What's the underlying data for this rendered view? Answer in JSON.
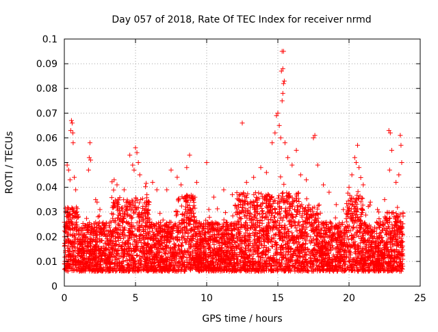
{
  "chart_data": {
    "type": "scatter",
    "title": "Day 057 of 2018, Rate Of TEC Index for receiver nrmd",
    "xlabel": "GPS time / hours",
    "ylabel": "ROTI / TECUs",
    "xlim": [
      0,
      25
    ],
    "ylim": [
      0,
      0.1
    ],
    "xticks": [
      0,
      5,
      10,
      15,
      20,
      25
    ],
    "xtick_labels": [
      "0",
      "5",
      "10",
      "15",
      "20",
      "25"
    ],
    "yticks": [
      0,
      0.01,
      0.02,
      0.03,
      0.04,
      0.05,
      0.06,
      0.07,
      0.08,
      0.09,
      0.1
    ],
    "ytick_labels": [
      "0",
      "0.01",
      "0.02",
      "0.03",
      "0.04",
      "0.05",
      "0.06",
      "0.07",
      "0.08",
      "0.09",
      "0.1"
    ],
    "grid": true,
    "marker": "+",
    "color": "#ff0000",
    "series": [
      {
        "name": "ROTI",
        "points": [
          [
            0.5,
            0.067
          ],
          [
            0.55,
            0.066
          ],
          [
            0.6,
            0.062
          ],
          [
            0.62,
            0.058
          ],
          [
            0.45,
            0.063
          ],
          [
            0.2,
            0.049
          ],
          [
            0.3,
            0.047
          ],
          [
            0.4,
            0.043
          ],
          [
            0.7,
            0.044
          ],
          [
            0.8,
            0.039
          ],
          [
            1.8,
            0.058
          ],
          [
            1.75,
            0.052
          ],
          [
            1.85,
            0.051
          ],
          [
            1.7,
            0.047
          ],
          [
            2.2,
            0.035
          ],
          [
            2.3,
            0.034
          ],
          [
            2.5,
            0.031
          ],
          [
            3.5,
            0.043
          ],
          [
            3.7,
            0.041
          ],
          [
            4.2,
            0.039
          ],
          [
            4.6,
            0.053
          ],
          [
            4.8,
            0.049
          ],
          [
            5.0,
            0.056
          ],
          [
            5.1,
            0.054
          ],
          [
            5.2,
            0.05
          ],
          [
            5.3,
            0.045
          ],
          [
            4.9,
            0.047
          ],
          [
            5.8,
            0.037
          ],
          [
            6.2,
            0.042
          ],
          [
            6.5,
            0.039
          ],
          [
            7.2,
            0.039
          ],
          [
            7.5,
            0.047
          ],
          [
            8.2,
            0.041
          ],
          [
            8.6,
            0.048
          ],
          [
            8.8,
            0.053
          ],
          [
            9.3,
            0.042
          ],
          [
            10.0,
            0.05
          ],
          [
            10.5,
            0.036
          ],
          [
            11.2,
            0.039
          ],
          [
            11.8,
            0.037
          ],
          [
            12.5,
            0.066
          ],
          [
            12.8,
            0.042
          ],
          [
            13.3,
            0.044
          ],
          [
            13.8,
            0.048
          ],
          [
            14.2,
            0.046
          ],
          [
            14.6,
            0.058
          ],
          [
            14.8,
            0.062
          ],
          [
            14.9,
            0.069
          ],
          [
            15.0,
            0.07
          ],
          [
            15.1,
            0.065
          ],
          [
            15.2,
            0.06
          ],
          [
            15.3,
            0.075
          ],
          [
            15.35,
            0.078
          ],
          [
            15.4,
            0.082
          ],
          [
            15.45,
            0.083
          ],
          [
            15.3,
            0.095
          ],
          [
            15.4,
            0.095
          ],
          [
            15.35,
            0.088
          ],
          [
            15.25,
            0.087
          ],
          [
            15.5,
            0.058
          ],
          [
            15.7,
            0.052
          ],
          [
            16.0,
            0.049
          ],
          [
            16.3,
            0.055
          ],
          [
            16.6,
            0.045
          ],
          [
            17.0,
            0.043
          ],
          [
            17.5,
            0.06
          ],
          [
            17.6,
            0.061
          ],
          [
            17.8,
            0.049
          ],
          [
            18.2,
            0.041
          ],
          [
            18.6,
            0.038
          ],
          [
            19.1,
            0.033
          ],
          [
            19.6,
            0.031
          ],
          [
            20.0,
            0.04
          ],
          [
            20.2,
            0.045
          ],
          [
            20.4,
            0.052
          ],
          [
            20.5,
            0.05
          ],
          [
            20.6,
            0.057
          ],
          [
            20.7,
            0.048
          ],
          [
            21.0,
            0.041
          ],
          [
            21.5,
            0.034
          ],
          [
            22.0,
            0.031
          ],
          [
            22.5,
            0.035
          ],
          [
            22.8,
            0.063
          ],
          [
            22.9,
            0.062
          ],
          [
            23.0,
            0.055
          ],
          [
            22.85,
            0.047
          ],
          [
            23.3,
            0.042
          ],
          [
            23.6,
            0.061
          ],
          [
            23.65,
            0.057
          ],
          [
            23.7,
            0.05
          ],
          [
            23.5,
            0.045
          ]
        ]
      }
    ],
    "description_of_density": "Dense band of points between 0.005 and 0.03 across 0–23.8 h with occasional spikes"
  }
}
